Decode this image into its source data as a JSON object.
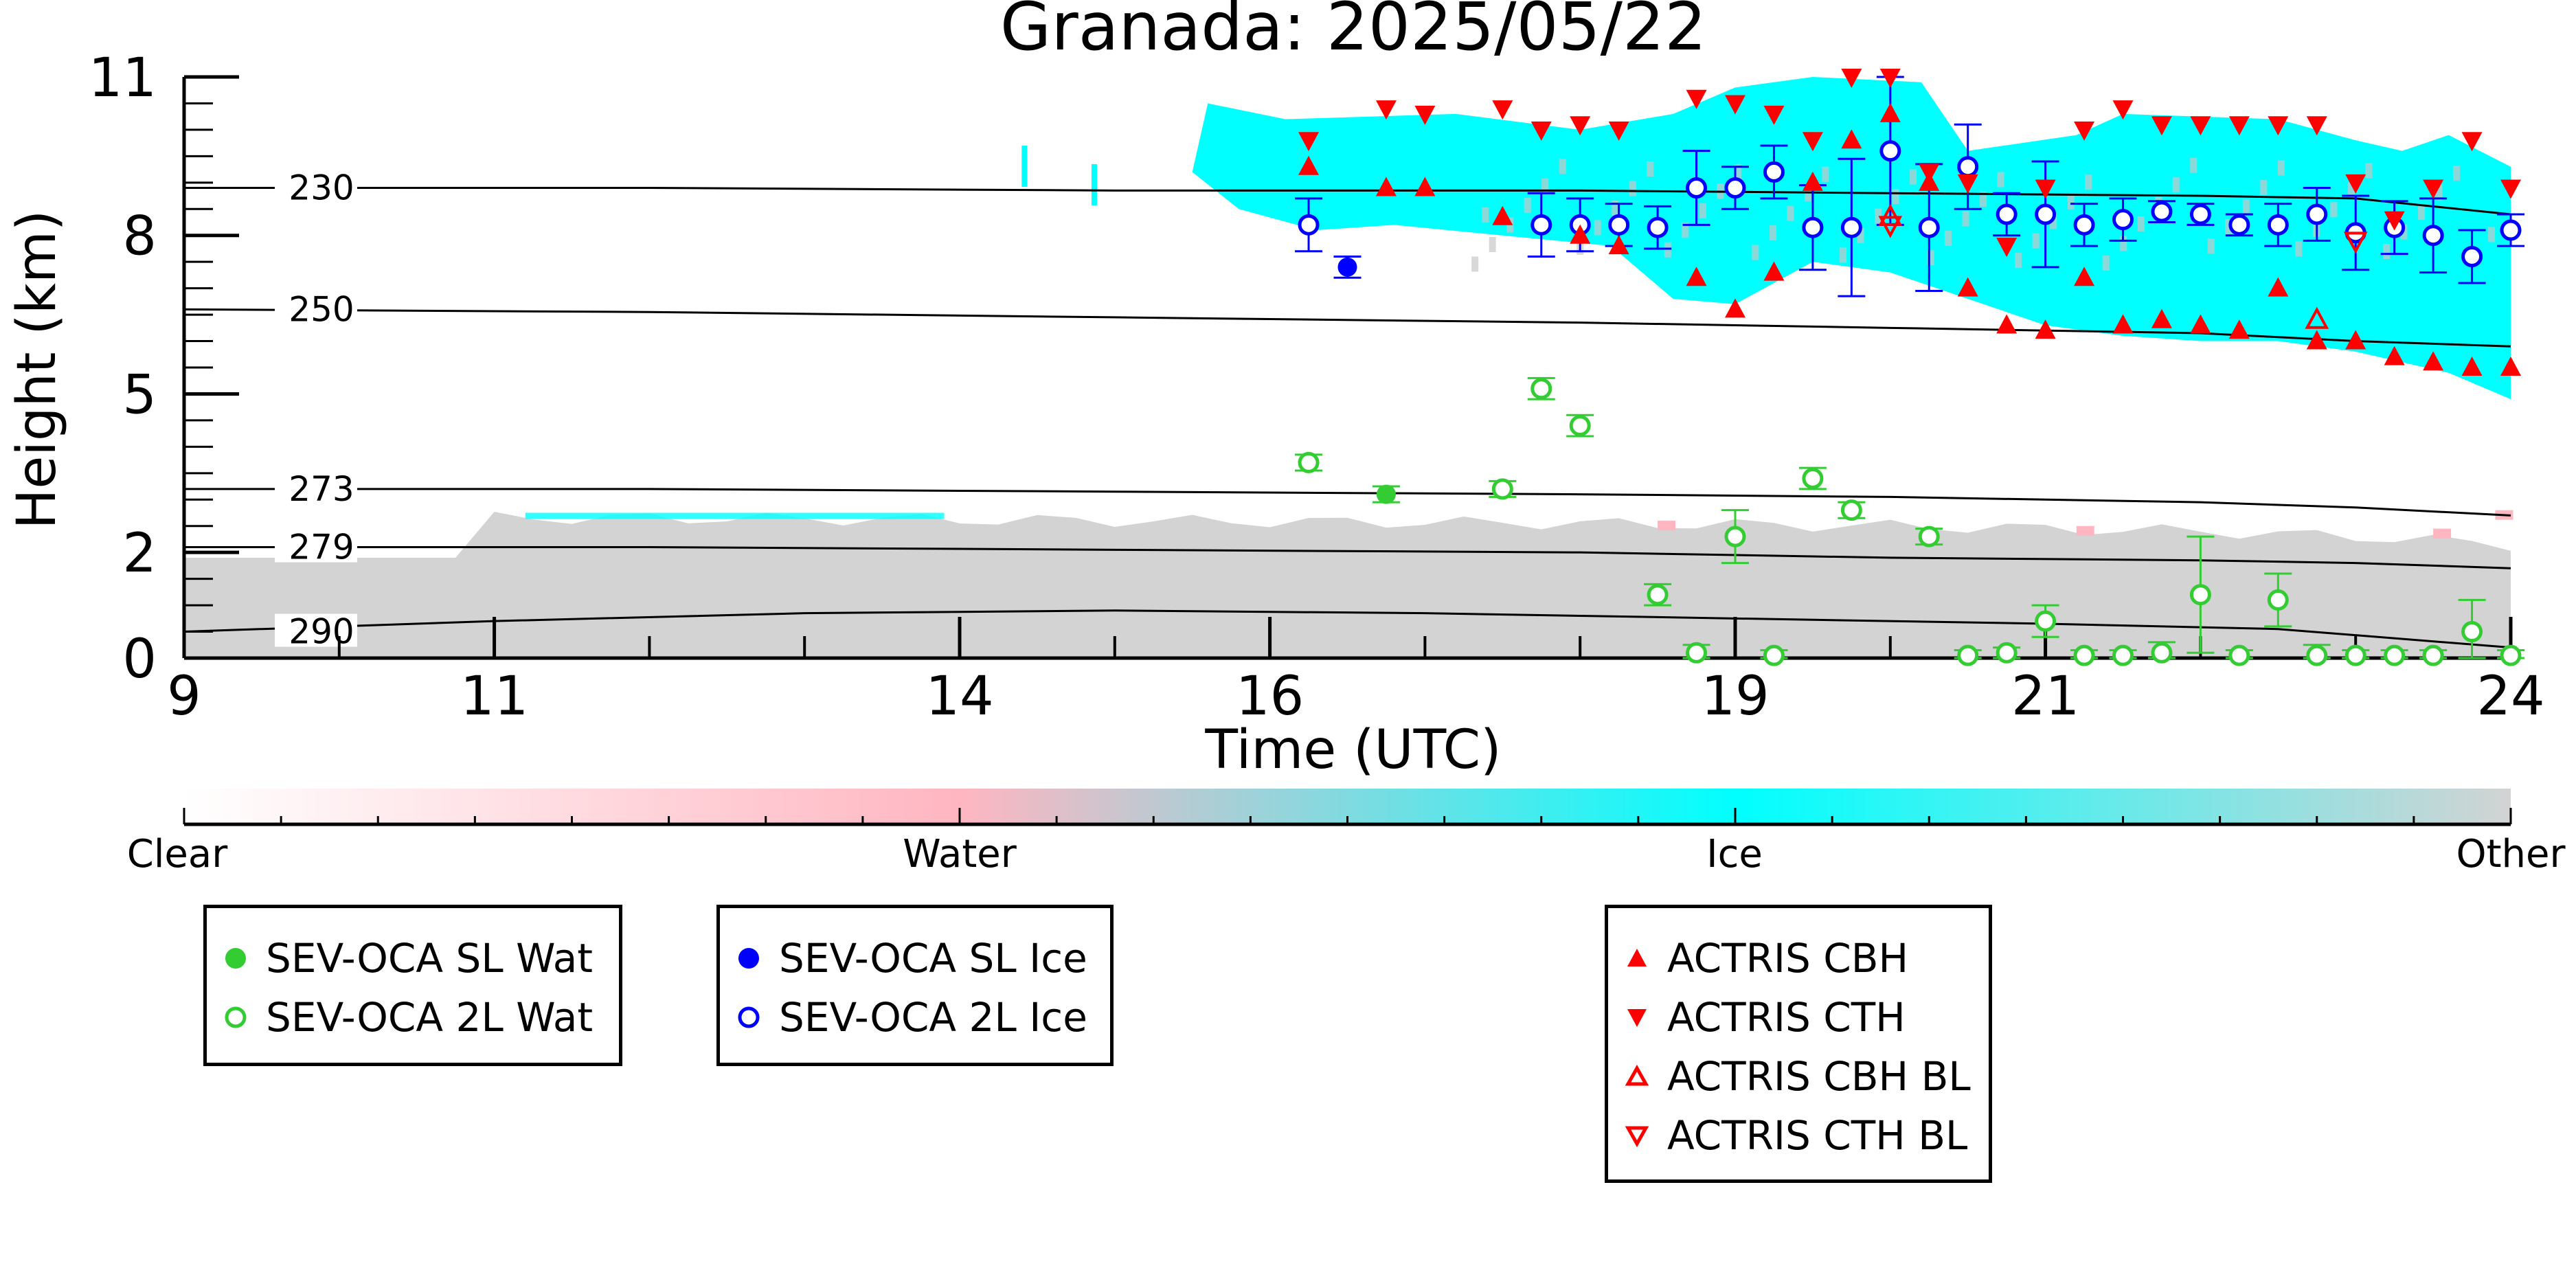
{
  "chart_data": {
    "type": "scatter",
    "title": "Granada: 2025/05/22",
    "xlabel": "Time (UTC)",
    "ylabel": "Height (km)",
    "xlim": [
      9,
      24
    ],
    "ylim": [
      0,
      11
    ],
    "x_ticks": [
      9,
      11,
      14,
      16,
      19,
      21,
      24
    ],
    "y_ticks": [
      0,
      2,
      5,
      8,
      11
    ],
    "colorbar": {
      "labels": [
        "Clear",
        "Water",
        "Ice",
        "Other"
      ],
      "colors": [
        "#ffffff",
        "#ffb6c1",
        "#00ffff",
        "#d3d3d3"
      ]
    },
    "isotherms": [
      {
        "label": "230",
        "x": [
          9,
          12,
          15,
          18,
          20,
          22,
          23,
          24
        ],
        "y": [
          8.9,
          8.9,
          8.85,
          8.85,
          8.8,
          8.75,
          8.7,
          8.4
        ]
      },
      {
        "label": "250",
        "x": [
          9,
          12,
          15,
          18,
          20,
          22,
          23,
          24
        ],
        "y": [
          6.6,
          6.55,
          6.45,
          6.35,
          6.25,
          6.15,
          6.0,
          5.9
        ]
      },
      {
        "label": "273",
        "x": [
          9,
          12,
          15,
          18,
          20,
          22,
          23,
          24
        ],
        "y": [
          3.2,
          3.2,
          3.15,
          3.1,
          3.05,
          2.95,
          2.85,
          2.7
        ]
      },
      {
        "label": "279",
        "x": [
          9,
          12,
          15,
          18,
          20,
          22,
          23,
          24
        ],
        "y": [
          2.1,
          2.1,
          2.05,
          2.0,
          1.9,
          1.85,
          1.8,
          1.7
        ]
      },
      {
        "label": "290",
        "x": [
          9,
          11,
          13,
          15,
          17,
          19,
          21,
          22.5,
          24
        ],
        "y": [
          0.5,
          0.7,
          0.85,
          0.9,
          0.85,
          0.75,
          0.65,
          0.55,
          0.2
        ]
      }
    ],
    "series": [
      {
        "name": "SEV-OCA SL Wat",
        "color": "#33cc33",
        "marker": "filled-circle",
        "x": [
          16.75
        ],
        "y": [
          3.1
        ],
        "err": [
          0.15
        ]
      },
      {
        "name": "SEV-OCA 2L Wat",
        "color": "#33cc33",
        "marker": "open-circle",
        "x": [
          16.25,
          17.5,
          17.75,
          18.0,
          18.5,
          18.75,
          19.0,
          19.25,
          19.5,
          19.75,
          20.25,
          20.5,
          20.75,
          21.0,
          21.25,
          21.5,
          21.75,
          22.0,
          22.25,
          22.5,
          22.75,
          23.0,
          23.25,
          23.5,
          23.75,
          24.0
        ],
        "y": [
          3.7,
          3.2,
          5.1,
          4.4,
          1.2,
          0.1,
          2.3,
          0.05,
          3.4,
          2.8,
          2.3,
          0.05,
          0.1,
          0.7,
          0.05,
          0.05,
          0.1,
          1.2,
          0.05,
          1.1,
          0.05,
          0.05,
          0.05,
          0.05,
          0.5,
          0.05
        ],
        "err": [
          0.15,
          0.15,
          0.2,
          0.2,
          0.2,
          0.15,
          0.5,
          0.1,
          0.2,
          0.15,
          0.15,
          0.1,
          0.1,
          0.3,
          0.1,
          0.1,
          0.2,
          1.1,
          0.1,
          0.5,
          0.2,
          0.1,
          0.1,
          0.1,
          0.6,
          0.1
        ]
      },
      {
        "name": "SEV-OCA SL Ice",
        "color": "#0000ff",
        "marker": "filled-circle",
        "x": [
          16.5
        ],
        "y": [
          7.4
        ],
        "err": [
          0.2
        ]
      },
      {
        "name": "SEV-OCA 2L Ice",
        "color": "#0000ff",
        "marker": "open-circle",
        "x": [
          16.25,
          17.75,
          18.0,
          18.25,
          18.5,
          18.75,
          19.0,
          19.25,
          19.5,
          19.75,
          20.0,
          20.25,
          20.5,
          20.75,
          21.0,
          21.25,
          21.5,
          21.75,
          22.0,
          22.25,
          22.5,
          22.75,
          23.0,
          23.25,
          23.5,
          23.75,
          24.0
        ],
        "y": [
          8.2,
          8.2,
          8.2,
          8.2,
          8.15,
          8.9,
          8.9,
          9.2,
          8.15,
          8.15,
          9.6,
          8.15,
          9.3,
          8.4,
          8.4,
          8.2,
          8.3,
          8.45,
          8.4,
          8.2,
          8.2,
          8.4,
          8.05,
          8.15,
          8.0,
          7.6,
          8.1
        ],
        "err": [
          0.5,
          0.6,
          0.5,
          0.4,
          0.4,
          0.7,
          0.4,
          0.5,
          0.8,
          1.3,
          1.4,
          1.2,
          0.8,
          0.4,
          1.0,
          0.4,
          0.4,
          0.2,
          0.2,
          0.2,
          0.4,
          0.5,
          0.7,
          0.5,
          0.7,
          0.5,
          0.3
        ]
      },
      {
        "name": "ACTRIS CBH",
        "color": "#ff0000",
        "marker": "triangle-up-filled",
        "x": [
          16.25,
          16.75,
          17.0,
          17.5,
          18.0,
          18.25,
          18.75,
          19.0,
          19.25,
          19.5,
          19.75,
          20.0,
          20.25,
          20.5,
          20.75,
          21.0,
          21.25,
          21.5,
          21.75,
          22.0,
          22.25,
          22.5,
          22.75,
          23.0,
          23.25,
          23.5,
          23.75,
          24.0
        ],
        "y": [
          9.3,
          8.9,
          8.9,
          8.35,
          8.0,
          7.8,
          7.2,
          6.6,
          7.3,
          9.0,
          9.8,
          10.3,
          9.0,
          7.0,
          6.3,
          6.2,
          7.2,
          6.3,
          6.4,
          6.3,
          6.2,
          7.0,
          6.0,
          6.0,
          5.7,
          5.6,
          5.5,
          5.5
        ],
        "err": []
      },
      {
        "name": "ACTRIS CTH",
        "color": "#ff0000",
        "marker": "triangle-down-filled",
        "x": [
          16.25,
          16.75,
          17.0,
          17.5,
          17.75,
          18.0,
          18.25,
          18.75,
          19.0,
          19.25,
          19.5,
          19.75,
          20.0,
          20.25,
          20.5,
          20.75,
          21.0,
          21.25,
          21.5,
          21.75,
          22.0,
          22.25,
          22.5,
          22.75,
          23.0,
          23.25,
          23.5,
          23.75,
          24.0
        ],
        "y": [
          9.8,
          10.4,
          10.3,
          10.4,
          10.0,
          10.1,
          10.0,
          10.6,
          10.5,
          10.3,
          9.8,
          11.0,
          11.0,
          9.2,
          9.0,
          7.8,
          8.9,
          10.0,
          10.4,
          10.1,
          10.1,
          10.1,
          10.1,
          10.1,
          9.0,
          8.3,
          8.9,
          9.8,
          8.9
        ],
        "err": []
      },
      {
        "name": "ACTRIS CBH BL",
        "color": "#ff0000",
        "marker": "triangle-up-open",
        "x": [
          20.0,
          22.75
        ],
        "y": [
          8.35,
          6.4
        ],
        "err": []
      },
      {
        "name": "ACTRIS CTH BL",
        "color": "#ff0000",
        "marker": "triangle-down-open",
        "x": [
          20.0,
          23.0
        ],
        "y": [
          8.2,
          7.9
        ],
        "err": []
      }
    ]
  }
}
